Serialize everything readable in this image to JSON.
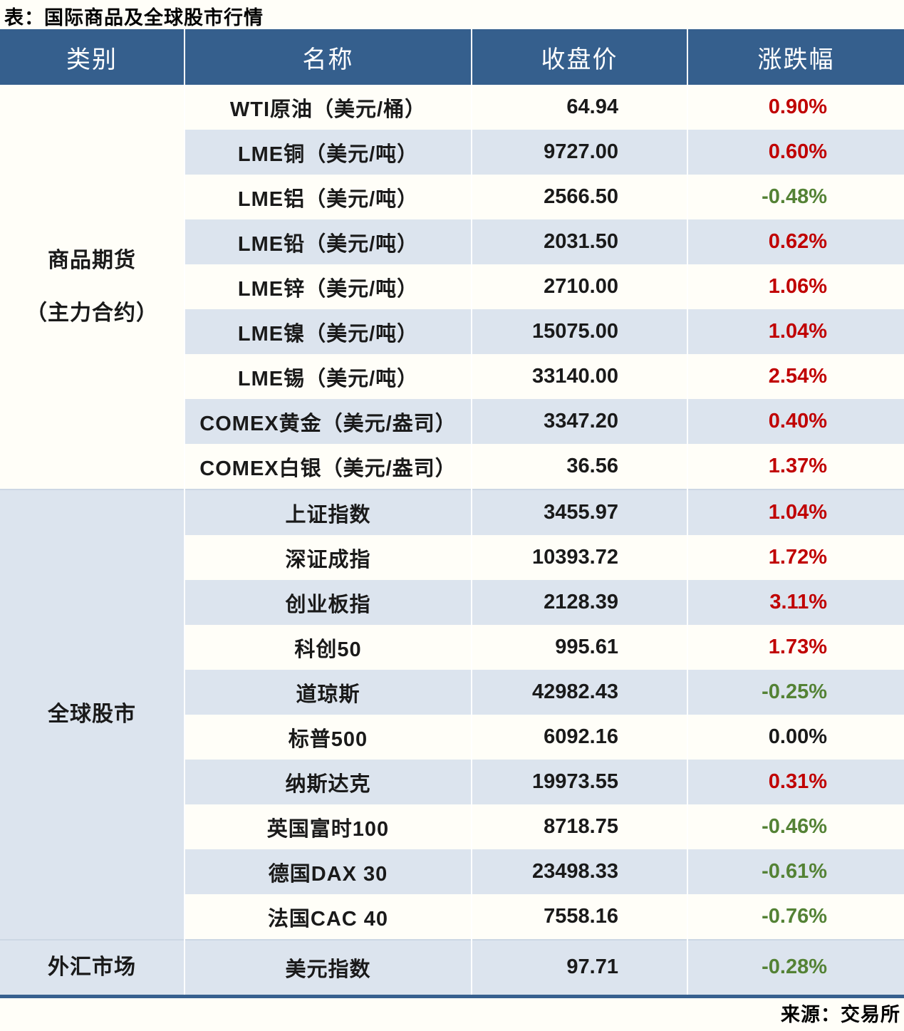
{
  "chart_data": {
    "type": "table",
    "title": "表：国际商品及全球股市行情",
    "source": "来源：交易所",
    "columns": [
      "类别",
      "名称",
      "收盘价",
      "涨跌幅"
    ],
    "colors": {
      "header_bg": "#355f8d",
      "header_text": "#ffffff",
      "row_alt_bg": "#dce4ee",
      "up_red": "#c00000",
      "down_green": "#548235",
      "flat_black": "#1a1a1a",
      "category_divider": "#ccd7e4",
      "table_bottom_border": "#37608f"
    },
    "categories": [
      {
        "label_lines": [
          "商品期货",
          "（主力合约）"
        ],
        "rows": [
          {
            "name": "WTI原油（美元/桶）",
            "close": "64.94",
            "change": "0.90%",
            "direction": "up"
          },
          {
            "name": "LME铜（美元/吨）",
            "close": "9727.00",
            "change": "0.60%",
            "direction": "up"
          },
          {
            "name": "LME铝（美元/吨）",
            "close": "2566.50",
            "change": "-0.48%",
            "direction": "down"
          },
          {
            "name": "LME铅（美元/吨）",
            "close": "2031.50",
            "change": "0.62%",
            "direction": "up"
          },
          {
            "name": "LME锌（美元/吨）",
            "close": "2710.00",
            "change": "1.06%",
            "direction": "up"
          },
          {
            "name": "LME镍（美元/吨）",
            "close": "15075.00",
            "change": "1.04%",
            "direction": "up"
          },
          {
            "name": "LME锡（美元/吨）",
            "close": "33140.00",
            "change": "2.54%",
            "direction": "up"
          },
          {
            "name": "COMEX黄金（美元/盎司）",
            "close": "3347.20",
            "change": "0.40%",
            "direction": "up"
          },
          {
            "name": "COMEX白银（美元/盎司）",
            "close": "36.56",
            "change": "1.37%",
            "direction": "up"
          }
        ]
      },
      {
        "label_lines": [
          "全球股市"
        ],
        "rows": [
          {
            "name": "上证指数",
            "close": "3455.97",
            "change": "1.04%",
            "direction": "up"
          },
          {
            "name": "深证成指",
            "close": "10393.72",
            "change": "1.72%",
            "direction": "up"
          },
          {
            "name": "创业板指",
            "close": "2128.39",
            "change": "3.11%",
            "direction": "up"
          },
          {
            "name": "科创50",
            "close": "995.61",
            "change": "1.73%",
            "direction": "up"
          },
          {
            "name": "道琼斯",
            "close": "42982.43",
            "change": "-0.25%",
            "direction": "down"
          },
          {
            "name": "标普500",
            "close": "6092.16",
            "change": "0.00%",
            "direction": "flat"
          },
          {
            "name": "纳斯达克",
            "close": "19973.55",
            "change": "0.31%",
            "direction": "up"
          },
          {
            "name": "英国富时100",
            "close": "8718.75",
            "change": "-0.46%",
            "direction": "down"
          },
          {
            "name": "德国DAX 30",
            "close": "23498.33",
            "change": "-0.61%",
            "direction": "down"
          },
          {
            "name": "法国CAC 40",
            "close": "7558.16",
            "change": "-0.76%",
            "direction": "down"
          }
        ]
      },
      {
        "label_lines": [
          "外汇市场"
        ],
        "rows": [
          {
            "name": "美元指数",
            "close": "97.71",
            "change": "-0.28%",
            "direction": "down"
          }
        ]
      }
    ]
  }
}
